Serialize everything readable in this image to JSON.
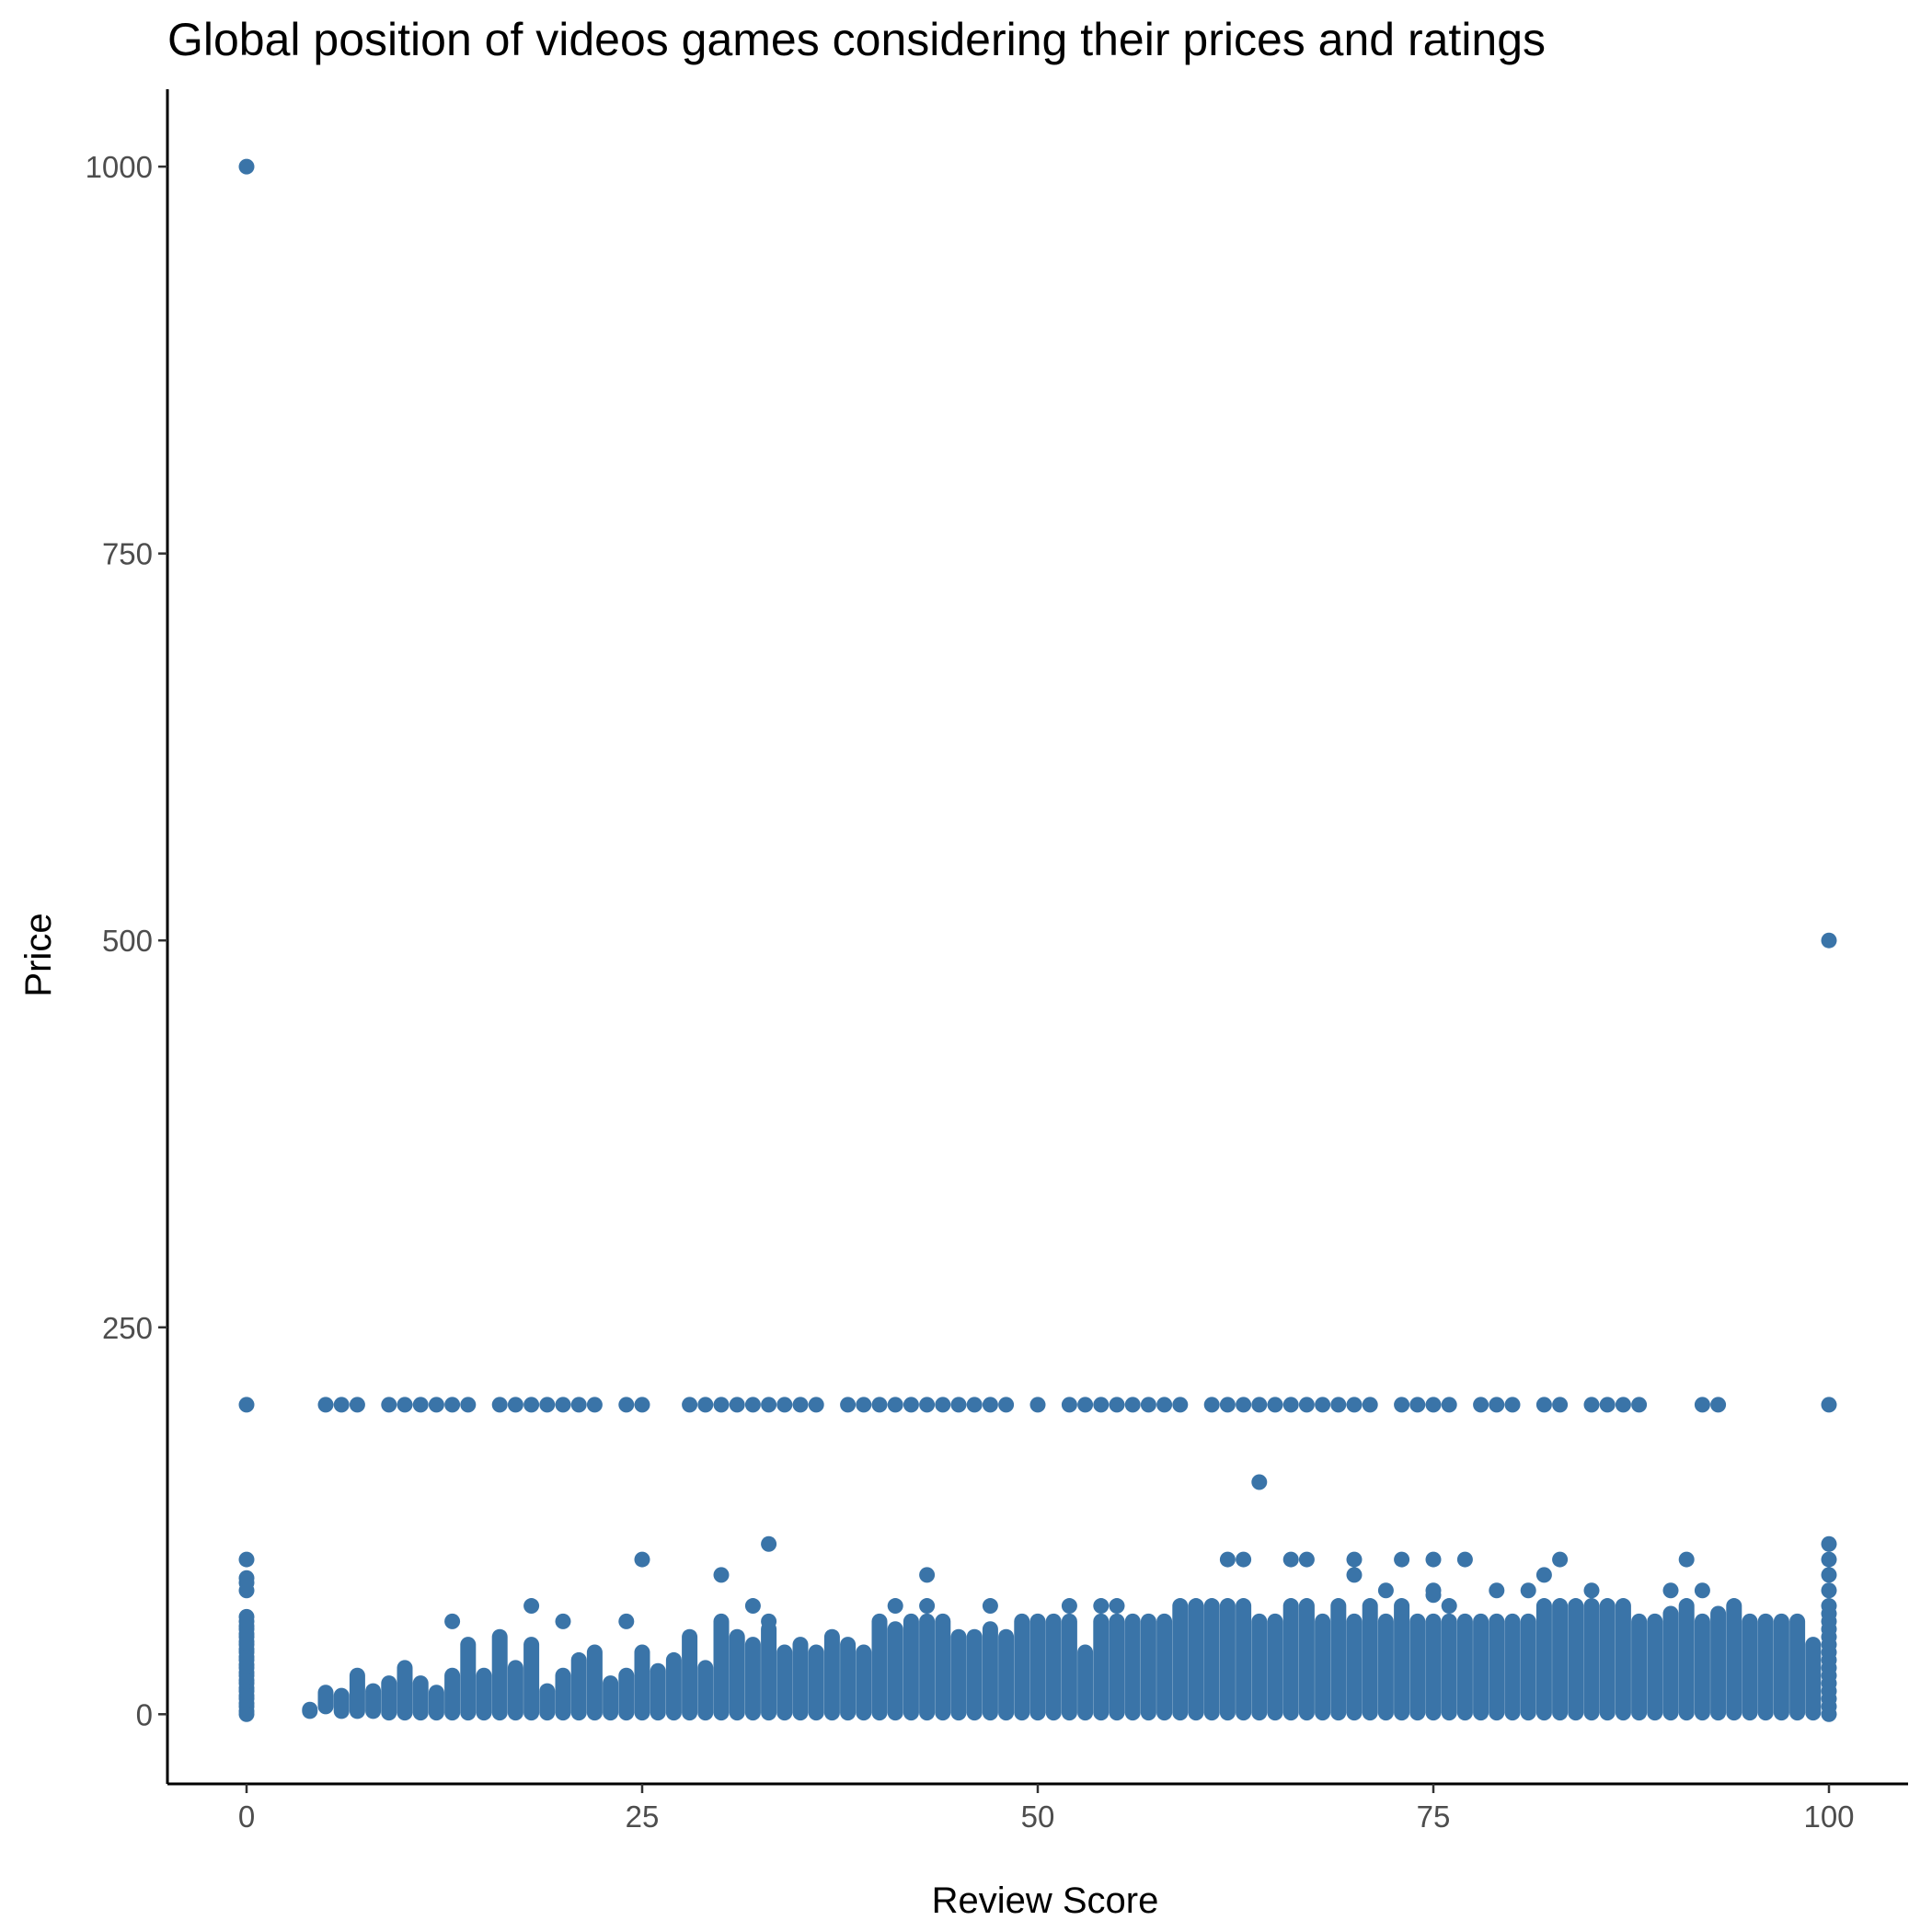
{
  "chart_data": {
    "type": "scatter",
    "title": "Global position of videos games considering their prices and ratings",
    "xlabel": "Review Score",
    "ylabel": "Price",
    "xlim": [
      -5,
      105
    ],
    "ylim": [
      -45,
      1050
    ],
    "x_ticks": [
      0,
      25,
      50,
      75,
      100
    ],
    "y_ticks": [
      0,
      250,
      500,
      750,
      1000
    ],
    "grid": false,
    "legend": "none",
    "point_color": "#3a74a8",
    "axis_color": "#000000",
    "points": [
      [
        0,
        1000
      ],
      [
        0,
        200
      ],
      [
        0,
        100
      ],
      [
        0,
        88
      ],
      [
        0,
        85
      ],
      [
        0,
        80
      ],
      [
        0,
        63
      ],
      [
        0,
        60
      ],
      [
        0,
        57
      ],
      [
        0,
        55
      ],
      [
        0,
        52
      ],
      [
        0,
        50
      ],
      [
        0,
        47
      ],
      [
        0,
        45
      ],
      [
        0,
        42
      ],
      [
        0,
        40
      ],
      [
        0,
        37
      ],
      [
        0,
        35
      ],
      [
        0,
        32
      ],
      [
        0,
        30
      ],
      [
        0,
        27
      ],
      [
        0,
        25
      ],
      [
        0,
        22
      ],
      [
        0,
        20
      ],
      [
        0,
        17
      ],
      [
        0,
        15
      ],
      [
        0,
        12
      ],
      [
        0,
        10
      ],
      [
        0,
        7
      ],
      [
        0,
        5
      ],
      [
        0,
        2
      ],
      [
        0,
        0
      ],
      [
        100,
        500
      ],
      [
        100,
        200
      ],
      [
        100,
        110
      ],
      [
        100,
        100
      ],
      [
        100,
        90
      ],
      [
        100,
        80
      ],
      [
        100,
        70
      ],
      [
        100,
        65
      ],
      [
        100,
        60
      ],
      [
        100,
        55
      ],
      [
        100,
        50
      ],
      [
        100,
        45
      ],
      [
        100,
        40
      ],
      [
        100,
        35
      ],
      [
        100,
        30
      ],
      [
        100,
        25
      ],
      [
        100,
        20
      ],
      [
        100,
        15
      ],
      [
        100,
        10
      ],
      [
        100,
        5
      ],
      [
        100,
        0
      ],
      [
        64,
        150
      ],
      [
        33,
        110
      ],
      [
        30,
        90
      ],
      [
        43,
        90
      ],
      [
        25,
        100
      ],
      [
        63,
        100
      ],
      [
        62,
        100
      ],
      [
        66,
        100
      ],
      [
        67,
        100
      ],
      [
        70,
        100
      ],
      [
        73,
        100
      ],
      [
        75,
        100
      ],
      [
        77,
        100
      ],
      [
        83,
        100
      ],
      [
        91,
        100
      ],
      [
        18,
        70
      ],
      [
        13,
        60
      ],
      [
        20,
        60
      ],
      [
        24,
        60
      ],
      [
        32,
        70
      ],
      [
        33,
        60
      ],
      [
        41,
        70
      ],
      [
        43,
        70
      ],
      [
        47,
        70
      ],
      [
        52,
        70
      ],
      [
        54,
        70
      ],
      [
        55,
        70
      ],
      [
        70,
        90
      ],
      [
        75,
        80
      ],
      [
        75,
        77
      ],
      [
        72,
        80
      ],
      [
        76,
        70
      ],
      [
        79,
        80
      ],
      [
        81,
        80
      ],
      [
        82,
        90
      ],
      [
        85,
        80
      ],
      [
        90,
        80
      ],
      [
        92,
        80
      ],
      [
        5,
        200
      ],
      [
        6,
        200
      ],
      [
        7,
        200
      ],
      [
        9,
        200
      ],
      [
        10,
        200
      ],
      [
        11,
        200
      ],
      [
        12,
        200
      ],
      [
        13,
        200
      ],
      [
        14,
        200
      ],
      [
        16,
        200
      ],
      [
        17,
        200
      ],
      [
        18,
        200
      ],
      [
        19,
        200
      ],
      [
        20,
        200
      ],
      [
        21,
        200
      ],
      [
        22,
        200
      ],
      [
        24,
        200
      ],
      [
        25,
        200
      ],
      [
        28,
        200
      ],
      [
        29,
        200
      ],
      [
        30,
        200
      ],
      [
        31,
        200
      ],
      [
        32,
        200
      ],
      [
        33,
        200
      ],
      [
        34,
        200
      ],
      [
        35,
        200
      ],
      [
        36,
        200
      ],
      [
        38,
        200
      ],
      [
        39,
        200
      ],
      [
        40,
        200
      ],
      [
        41,
        200
      ],
      [
        42,
        200
      ],
      [
        43,
        200
      ],
      [
        44,
        200
      ],
      [
        45,
        200
      ],
      [
        46,
        200
      ],
      [
        47,
        200
      ],
      [
        48,
        200
      ],
      [
        50,
        200
      ],
      [
        52,
        200
      ],
      [
        53,
        200
      ],
      [
        54,
        200
      ],
      [
        55,
        200
      ],
      [
        56,
        200
      ],
      [
        57,
        200
      ],
      [
        58,
        200
      ],
      [
        59,
        200
      ],
      [
        61,
        200
      ],
      [
        62,
        200
      ],
      [
        63,
        200
      ],
      [
        64,
        200
      ],
      [
        65,
        200
      ],
      [
        66,
        200
      ],
      [
        67,
        200
      ],
      [
        68,
        200
      ],
      [
        69,
        200
      ],
      [
        70,
        200
      ],
      [
        71,
        200
      ],
      [
        73,
        200
      ],
      [
        74,
        200
      ],
      [
        75,
        200
      ],
      [
        76,
        200
      ],
      [
        78,
        200
      ],
      [
        79,
        200
      ],
      [
        80,
        200
      ],
      [
        82,
        200
      ],
      [
        83,
        200
      ],
      [
        85,
        200
      ],
      [
        86,
        200
      ],
      [
        87,
        200
      ],
      [
        88,
        200
      ],
      [
        92,
        200
      ],
      [
        93,
        200
      ]
    ],
    "vertical_bands": [
      {
        "x": 4,
        "low": 2,
        "high": 3
      },
      {
        "x": 5,
        "low": 5,
        "high": 14
      },
      {
        "x": 6,
        "low": 2,
        "high": 12
      },
      {
        "x": 7,
        "low": 2,
        "high": 25
      },
      {
        "x": 8,
        "low": 2,
        "high": 15
      },
      {
        "x": 9,
        "low": 1,
        "high": 20
      },
      {
        "x": 10,
        "low": 1,
        "high": 30
      },
      {
        "x": 11,
        "low": 1,
        "high": 20
      },
      {
        "x": 12,
        "low": 1,
        "high": 14
      },
      {
        "x": 13,
        "low": 1,
        "high": 25
      },
      {
        "x": 14,
        "low": 1,
        "high": 45
      },
      {
        "x": 15,
        "low": 1,
        "high": 25
      },
      {
        "x": 16,
        "low": 1,
        "high": 50
      },
      {
        "x": 17,
        "low": 1,
        "high": 30
      },
      {
        "x": 18,
        "low": 1,
        "high": 45
      },
      {
        "x": 19,
        "low": 1,
        "high": 15
      },
      {
        "x": 20,
        "low": 1,
        "high": 25
      },
      {
        "x": 21,
        "low": 1,
        "high": 35
      },
      {
        "x": 22,
        "low": 1,
        "high": 40
      },
      {
        "x": 23,
        "low": 1,
        "high": 20
      },
      {
        "x": 24,
        "low": 1,
        "high": 25
      },
      {
        "x": 25,
        "low": 1,
        "high": 40
      },
      {
        "x": 26,
        "low": 1,
        "high": 28
      },
      {
        "x": 27,
        "low": 1,
        "high": 35
      },
      {
        "x": 28,
        "low": 1,
        "high": 50
      },
      {
        "x": 29,
        "low": 1,
        "high": 30
      },
      {
        "x": 30,
        "low": 1,
        "high": 60
      },
      {
        "x": 31,
        "low": 1,
        "high": 50
      },
      {
        "x": 32,
        "low": 1,
        "high": 45
      },
      {
        "x": 33,
        "low": 1,
        "high": 55
      },
      {
        "x": 34,
        "low": 1,
        "high": 40
      },
      {
        "x": 35,
        "low": 1,
        "high": 45
      },
      {
        "x": 36,
        "low": 1,
        "high": 40
      },
      {
        "x": 37,
        "low": 1,
        "high": 50
      },
      {
        "x": 38,
        "low": 1,
        "high": 45
      },
      {
        "x": 39,
        "low": 1,
        "high": 40
      },
      {
        "x": 40,
        "low": 1,
        "high": 60
      },
      {
        "x": 41,
        "low": 1,
        "high": 55
      },
      {
        "x": 42,
        "low": 1,
        "high": 60
      },
      {
        "x": 43,
        "low": 1,
        "high": 60
      },
      {
        "x": 44,
        "low": 1,
        "high": 60
      },
      {
        "x": 45,
        "low": 1,
        "high": 50
      },
      {
        "x": 46,
        "low": 1,
        "high": 50
      },
      {
        "x": 47,
        "low": 1,
        "high": 55
      },
      {
        "x": 48,
        "low": 1,
        "high": 50
      },
      {
        "x": 49,
        "low": 1,
        "high": 60
      },
      {
        "x": 50,
        "low": 1,
        "high": 60
      },
      {
        "x": 51,
        "low": 1,
        "high": 60
      },
      {
        "x": 52,
        "low": 1,
        "high": 60
      },
      {
        "x": 53,
        "low": 1,
        "high": 40
      },
      {
        "x": 54,
        "low": 1,
        "high": 60
      },
      {
        "x": 55,
        "low": 1,
        "high": 60
      },
      {
        "x": 56,
        "low": 1,
        "high": 60
      },
      {
        "x": 57,
        "low": 1,
        "high": 60
      },
      {
        "x": 58,
        "low": 1,
        "high": 60
      },
      {
        "x": 59,
        "low": 1,
        "high": 70
      },
      {
        "x": 60,
        "low": 1,
        "high": 70
      },
      {
        "x": 61,
        "low": 1,
        "high": 70
      },
      {
        "x": 62,
        "low": 1,
        "high": 70
      },
      {
        "x": 63,
        "low": 1,
        "high": 70
      },
      {
        "x": 64,
        "low": 1,
        "high": 60
      },
      {
        "x": 65,
        "low": 1,
        "high": 60
      },
      {
        "x": 66,
        "low": 1,
        "high": 70
      },
      {
        "x": 67,
        "low": 1,
        "high": 70
      },
      {
        "x": 68,
        "low": 1,
        "high": 60
      },
      {
        "x": 69,
        "low": 1,
        "high": 70
      },
      {
        "x": 70,
        "low": 1,
        "high": 60
      },
      {
        "x": 71,
        "low": 1,
        "high": 70
      },
      {
        "x": 72,
        "low": 1,
        "high": 60
      },
      {
        "x": 73,
        "low": 1,
        "high": 70
      },
      {
        "x": 74,
        "low": 1,
        "high": 60
      },
      {
        "x": 75,
        "low": 1,
        "high": 60
      },
      {
        "x": 76,
        "low": 1,
        "high": 60
      },
      {
        "x": 77,
        "low": 1,
        "high": 60
      },
      {
        "x": 78,
        "low": 1,
        "high": 60
      },
      {
        "x": 79,
        "low": 1,
        "high": 60
      },
      {
        "x": 80,
        "low": 1,
        "high": 60
      },
      {
        "x": 81,
        "low": 1,
        "high": 60
      },
      {
        "x": 82,
        "low": 1,
        "high": 70
      },
      {
        "x": 83,
        "low": 1,
        "high": 70
      },
      {
        "x": 84,
        "low": 1,
        "high": 70
      },
      {
        "x": 85,
        "low": 1,
        "high": 70
      },
      {
        "x": 86,
        "low": 1,
        "high": 70
      },
      {
        "x": 87,
        "low": 1,
        "high": 70
      },
      {
        "x": 88,
        "low": 1,
        "high": 60
      },
      {
        "x": 89,
        "low": 1,
        "high": 60
      },
      {
        "x": 90,
        "low": 1,
        "high": 65
      },
      {
        "x": 91,
        "low": 1,
        "high": 70
      },
      {
        "x": 92,
        "low": 1,
        "high": 60
      },
      {
        "x": 93,
        "low": 1,
        "high": 65
      },
      {
        "x": 94,
        "low": 1,
        "high": 70
      },
      {
        "x": 95,
        "low": 1,
        "high": 60
      },
      {
        "x": 96,
        "low": 1,
        "high": 60
      },
      {
        "x": 97,
        "low": 1,
        "high": 60
      },
      {
        "x": 98,
        "low": 1,
        "high": 60
      },
      {
        "x": 99,
        "low": 1,
        "high": 45
      }
    ]
  }
}
